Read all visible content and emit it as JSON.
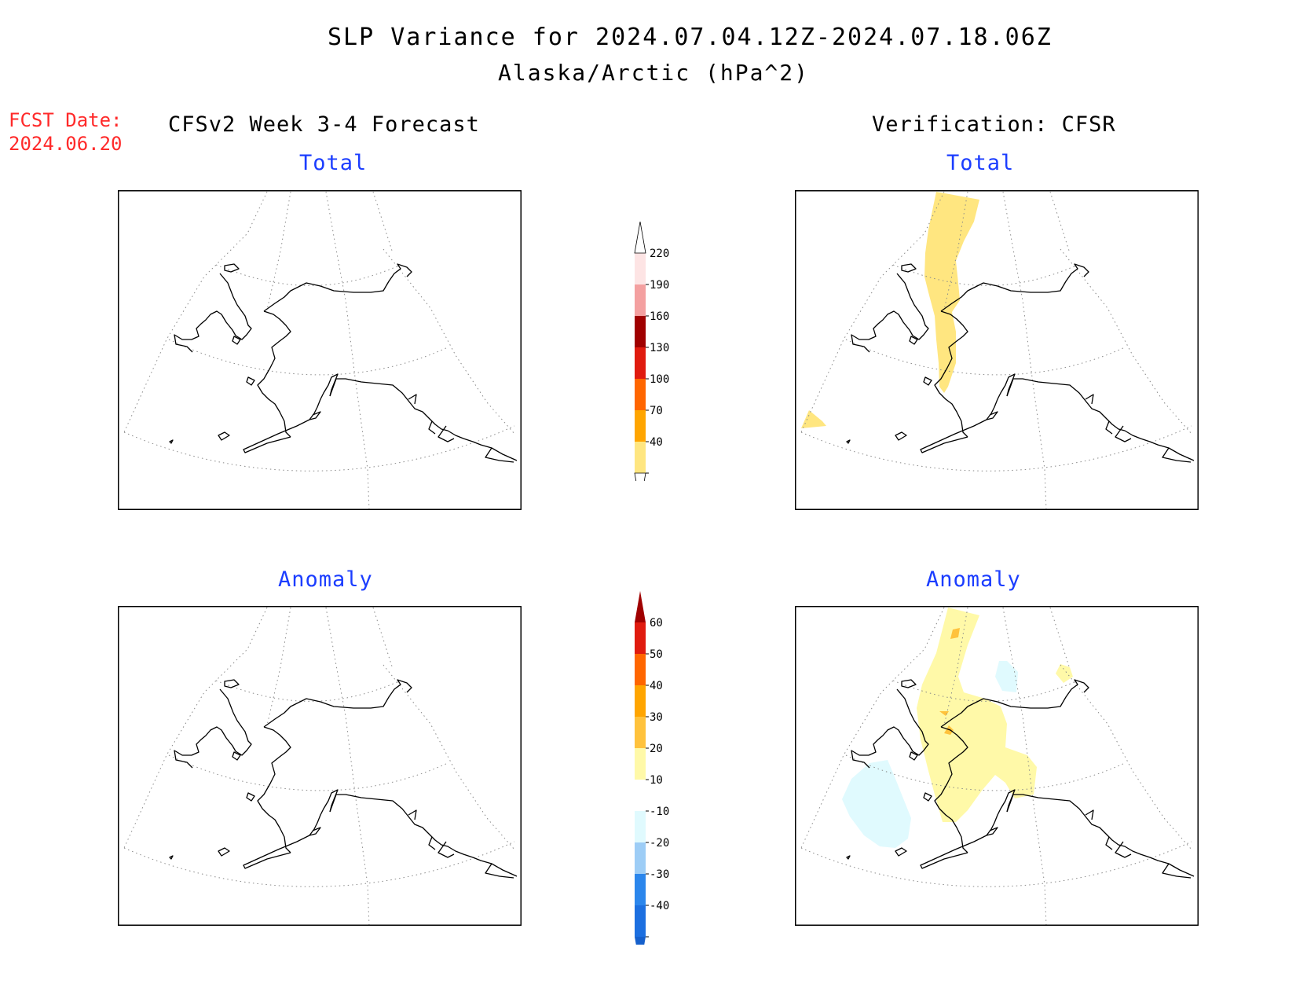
{
  "title": "SLP Variance for 2024.07.04.12Z-2024.07.18.06Z",
  "subtitle": "Alaska/Arctic (hPa^2)",
  "fcst_date": {
    "label": "FCST Date:",
    "value": "2024.06.20"
  },
  "columns": {
    "left": "CFSv2 Week 3-4 Forecast",
    "right": "Verification: CFSR"
  },
  "panels": [
    {
      "id": "forecast-total",
      "label": "Total"
    },
    {
      "id": "verification-total",
      "label": "Total"
    },
    {
      "id": "forecast-anomaly",
      "label": "Anomaly"
    },
    {
      "id": "verification-anomaly",
      "label": "Anomaly"
    }
  ],
  "colorbars": {
    "total": {
      "levels": [
        {
          "label": "40",
          "color": "#ffe680"
        },
        {
          "label": "70",
          "color": "#ffa500"
        },
        {
          "label": "100",
          "color": "#ff6600"
        },
        {
          "label": "130",
          "color": "#e01b0f"
        },
        {
          "label": "160",
          "color": "#a00000"
        },
        {
          "label": "190",
          "color": "#f4a0a0"
        },
        {
          "label": "220",
          "color": "#fde4e4"
        }
      ],
      "min_color": "#ffffff"
    },
    "anomaly": {
      "levels": [
        {
          "label": "-40",
          "color": "#1c6fe0"
        },
        {
          "label": "-30",
          "color": "#2b86ec"
        },
        {
          "label": "-20",
          "color": "#9dcdf6"
        },
        {
          "label": "-10",
          "color": "#e0fafe"
        },
        {
          "label": "10",
          "color": "#ffffff"
        },
        {
          "label": "20",
          "color": "#fff9a8"
        },
        {
          "label": "30",
          "color": "#ffc23c"
        },
        {
          "label": "40",
          "color": "#ffa500"
        },
        {
          "label": "50",
          "color": "#ff6600"
        },
        {
          "label": "60",
          "color": "#e01b0f"
        }
      ],
      "max_color": "#a00000",
      "min_color": "#1560cc"
    }
  }
}
